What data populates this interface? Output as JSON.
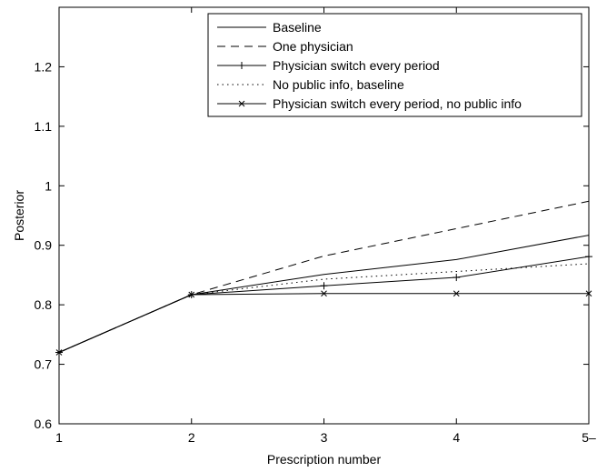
{
  "chart_data": {
    "type": "line",
    "xlabel": "Prescription number",
    "ylabel": "Posterior",
    "xlim": [
      1,
      5
    ],
    "ylim": [
      0.6,
      1.3
    ],
    "x_ticks": [
      1,
      2,
      3,
      4,
      5
    ],
    "x_tick_labels": [
      "1",
      "2",
      "3",
      "4",
      "5–"
    ],
    "y_ticks": [
      0.6,
      0.7,
      0.8,
      0.9,
      1.0,
      1.1,
      1.2
    ],
    "y_tick_labels": [
      "0.6",
      "0.7",
      "0.8",
      "0.9",
      "1",
      "1.1",
      "1.2"
    ],
    "grid": false,
    "legend_position": "top-right",
    "x": [
      1,
      2,
      3,
      4,
      5
    ],
    "series": [
      {
        "name": "Baseline",
        "style": "solid",
        "marker": "none",
        "color": "#000000",
        "values": [
          0.72,
          0.817,
          0.851,
          0.876,
          0.917
        ]
      },
      {
        "name": "One physician",
        "style": "dashed",
        "marker": "none",
        "color": "#000000",
        "values": [
          0.72,
          0.817,
          0.882,
          0.928,
          0.974
        ]
      },
      {
        "name": "Physician switch every period",
        "style": "solid",
        "marker": "plus",
        "color": "#000000",
        "values": [
          0.72,
          0.817,
          0.832,
          0.846,
          0.881
        ]
      },
      {
        "name": "No public info, baseline",
        "style": "dotted",
        "marker": "none",
        "color": "#000000",
        "values": [
          0.72,
          0.817,
          0.843,
          0.856,
          0.869
        ]
      },
      {
        "name": "Physician switch every period, no public info",
        "style": "solid",
        "marker": "x",
        "color": "#000000",
        "values": [
          0.72,
          0.817,
          0.819,
          0.819,
          0.819
        ]
      }
    ]
  }
}
